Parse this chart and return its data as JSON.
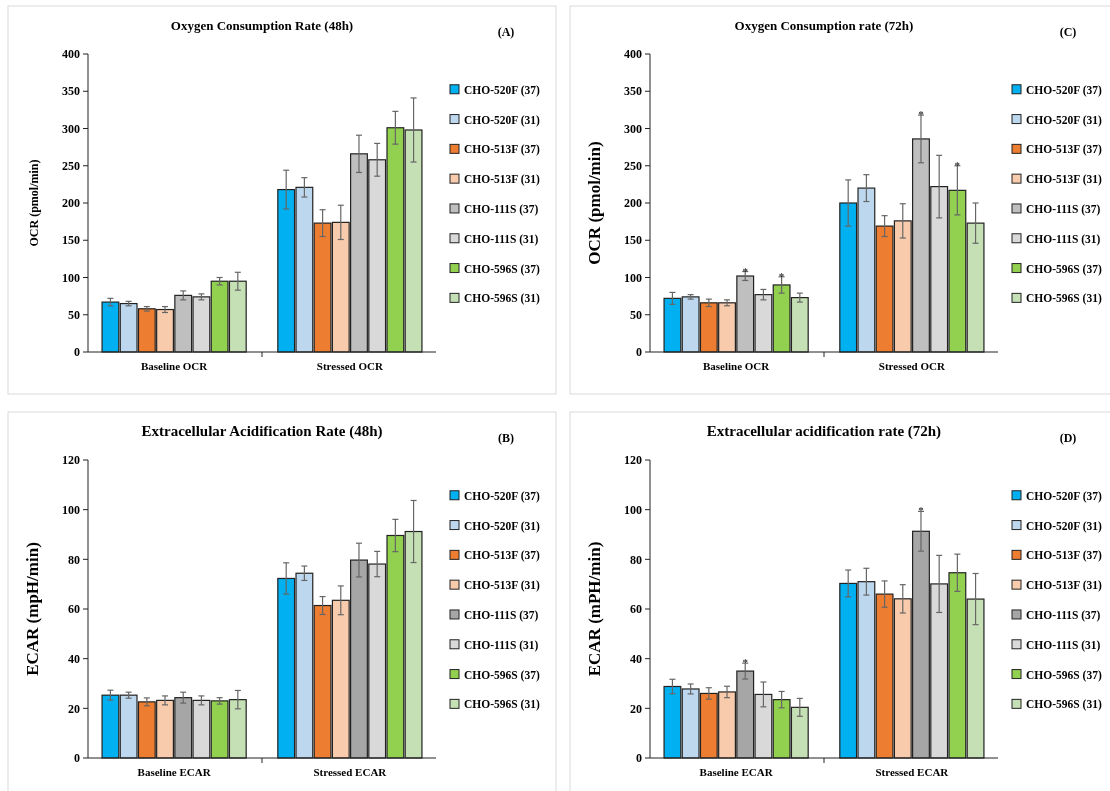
{
  "chart_data": [
    {
      "type": "bar",
      "title": "Oxygen Consumption Rate (48h)",
      "ylabel": "OCR (pmol/min)",
      "categories": [
        "Baseline OCR",
        "Stressed OCR"
      ],
      "ylim": [
        0,
        400
      ],
      "yticks": [
        0,
        50,
        100,
        150,
        200,
        250,
        300,
        350,
        400
      ],
      "legend": "right",
      "annotations": [
        "(A)"
      ],
      "series": [
        {
          "name": "CHO-520F (37)",
          "color": "#00b0f0",
          "values": [
            67,
            218
          ],
          "errors": [
            5,
            26
          ]
        },
        {
          "name": "CHO-520F (31)",
          "color": "#bdd7ee",
          "values": [
            65,
            221
          ],
          "errors": [
            3,
            13
          ]
        },
        {
          "name": "CHO-513F (37)",
          "color": "#ed7d31",
          "values": [
            58,
            173
          ],
          "errors": [
            3,
            18
          ]
        },
        {
          "name": "CHO-513F (31)",
          "color": "#f8cbad",
          "values": [
            57,
            174
          ],
          "errors": [
            4,
            23
          ]
        },
        {
          "name": "CHO-111S (37)",
          "color": "#bfbfbf",
          "values": [
            76,
            266
          ],
          "errors": [
            6,
            25
          ]
        },
        {
          "name": "CHO-111S (31)",
          "color": "#d9d9d9",
          "values": [
            74,
            258
          ],
          "errors": [
            4,
            22
          ]
        },
        {
          "name": "CHO-596S (37)",
          "color": "#92d050",
          "values": [
            95,
            301
          ],
          "errors": [
            5,
            22
          ]
        },
        {
          "name": "CHO-596S (31)",
          "color": "#c5e0b4",
          "values": [
            95,
            298
          ],
          "errors": [
            12,
            43
          ]
        }
      ]
    },
    {
      "type": "bar",
      "title": "Oxygen Consumption rate (72h)",
      "ylabel": "OCR (pmol/min)",
      "categories": [
        "Baseline OCR",
        "Stressed OCR"
      ],
      "ylim": [
        0,
        400
      ],
      "yticks": [
        0,
        50,
        100,
        150,
        200,
        250,
        300,
        350,
        400
      ],
      "legend": "right",
      "annotations": [
        "(C)",
        {
          "text": "*",
          "y": 102
        },
        {
          "text": "*",
          "y": 101
        },
        {
          "text": "*",
          "y": 286
        },
        {
          "text": "*",
          "y": 250
        }
      ],
      "series": [
        {
          "name": "CHO-520F (37)",
          "color": "#00b0f0",
          "values": [
            72,
            200
          ],
          "errors": [
            8,
            31
          ]
        },
        {
          "name": "CHO-520F (31)",
          "color": "#bdd7ee",
          "values": [
            74,
            220
          ],
          "errors": [
            3,
            18
          ]
        },
        {
          "name": "CHO-513F (37)",
          "color": "#ed7d31",
          "values": [
            66,
            169
          ],
          "errors": [
            5,
            14
          ]
        },
        {
          "name": "CHO-513F (31)",
          "color": "#f8cbad",
          "values": [
            66,
            176
          ],
          "errors": [
            4,
            23
          ]
        },
        {
          "name": "CHO-111S (37)",
          "color": "#bfbfbf",
          "values": [
            102,
            286
          ],
          "errors": [
            6,
            32
          ]
        },
        {
          "name": "CHO-111S (31)",
          "color": "#d9d9d9",
          "values": [
            77,
            222
          ],
          "errors": [
            7,
            42
          ]
        },
        {
          "name": "CHO-596S (37)",
          "color": "#92d050",
          "values": [
            90,
            217
          ],
          "errors": [
            11,
            33
          ]
        },
        {
          "name": "CHO-596S (31)",
          "color": "#c5e0b4",
          "values": [
            73,
            173
          ],
          "errors": [
            6,
            27
          ]
        }
      ]
    },
    {
      "type": "bar",
      "title": "Extracellular Acidification Rate (48h)",
      "ylabel": "ECAR (mpH/min)",
      "categories": [
        "Baseline ECAR",
        "Stressed ECAR"
      ],
      "ylim": [
        0,
        120
      ],
      "yticks": [
        0,
        20,
        40,
        60,
        80,
        100,
        120
      ],
      "legend": "right",
      "annotations": [
        "(B)"
      ],
      "series": [
        {
          "name": "CHO-520F (37)",
          "color": "#00b0f0",
          "values": [
            25.3,
            72.3
          ],
          "errors": [
            2,
            6.3
          ]
        },
        {
          "name": "CHO-520F (31)",
          "color": "#bdd7ee",
          "values": [
            25.3,
            74.4
          ],
          "errors": [
            1.2,
            2.9
          ]
        },
        {
          "name": "CHO-513F (37)",
          "color": "#ed7d31",
          "values": [
            22.6,
            61.4
          ],
          "errors": [
            1.6,
            3.6
          ]
        },
        {
          "name": "CHO-513F (31)",
          "color": "#f8cbad",
          "values": [
            23.2,
            63.5
          ],
          "errors": [
            1.8,
            5.8
          ]
        },
        {
          "name": "CHO-111S (37)",
          "color": "#a6a6a6",
          "values": [
            24.3,
            79.7
          ],
          "errors": [
            2.2,
            6.8
          ]
        },
        {
          "name": "CHO-111S (31)",
          "color": "#d9d9d9",
          "values": [
            23.2,
            78.1
          ],
          "errors": [
            1.8,
            5.1
          ]
        },
        {
          "name": "CHO-596S (37)",
          "color": "#92d050",
          "values": [
            23,
            89.6
          ],
          "errors": [
            1.3,
            6.5
          ]
        },
        {
          "name": "CHO-596S (31)",
          "color": "#c5e0b4",
          "values": [
            23.5,
            91.2
          ],
          "errors": [
            3.7,
            12.5
          ]
        }
      ]
    },
    {
      "type": "bar",
      "title": "Extracellular acidification rate (72h)",
      "ylabel": "ECAR (mPH/min)",
      "categories": [
        "Baseline ECAR",
        "Stressed ECAR"
      ],
      "ylim": [
        0,
        120
      ],
      "yticks": [
        0,
        20,
        40,
        60,
        80,
        100,
        120
      ],
      "legend": "right",
      "annotations": [
        "(D)",
        {
          "text": "*",
          "y": 35
        },
        {
          "text": "*",
          "y": 91.3
        }
      ],
      "series": [
        {
          "name": "CHO-520F (37)",
          "color": "#00b0f0",
          "values": [
            28.8,
            70.3
          ],
          "errors": [
            2.9,
            5.4
          ]
        },
        {
          "name": "CHO-520F (31)",
          "color": "#bdd7ee",
          "values": [
            27.8,
            71
          ],
          "errors": [
            2,
            5.4
          ]
        },
        {
          "name": "CHO-513F (37)",
          "color": "#ed7d31",
          "values": [
            26,
            66
          ],
          "errors": [
            2.3,
            5.3
          ]
        },
        {
          "name": "CHO-513F (31)",
          "color": "#f8cbad",
          "values": [
            26.6,
            64.1
          ],
          "errors": [
            2.3,
            5.7
          ]
        },
        {
          "name": "CHO-111S (37)",
          "color": "#a6a6a6",
          "values": [
            35,
            91.3
          ],
          "errors": [
            3.2,
            8
          ]
        },
        {
          "name": "CHO-111S (31)",
          "color": "#d9d9d9",
          "values": [
            25.6,
            70.1
          ],
          "errors": [
            5,
            11.5
          ]
        },
        {
          "name": "CHO-596S (37)",
          "color": "#92d050",
          "values": [
            23.5,
            74.6
          ],
          "errors": [
            3.3,
            7.5
          ]
        },
        {
          "name": "CHO-596S (31)",
          "color": "#c5e0b4",
          "values": [
            20.4,
            64
          ],
          "errors": [
            3.6,
            10.3
          ]
        }
      ]
    }
  ]
}
